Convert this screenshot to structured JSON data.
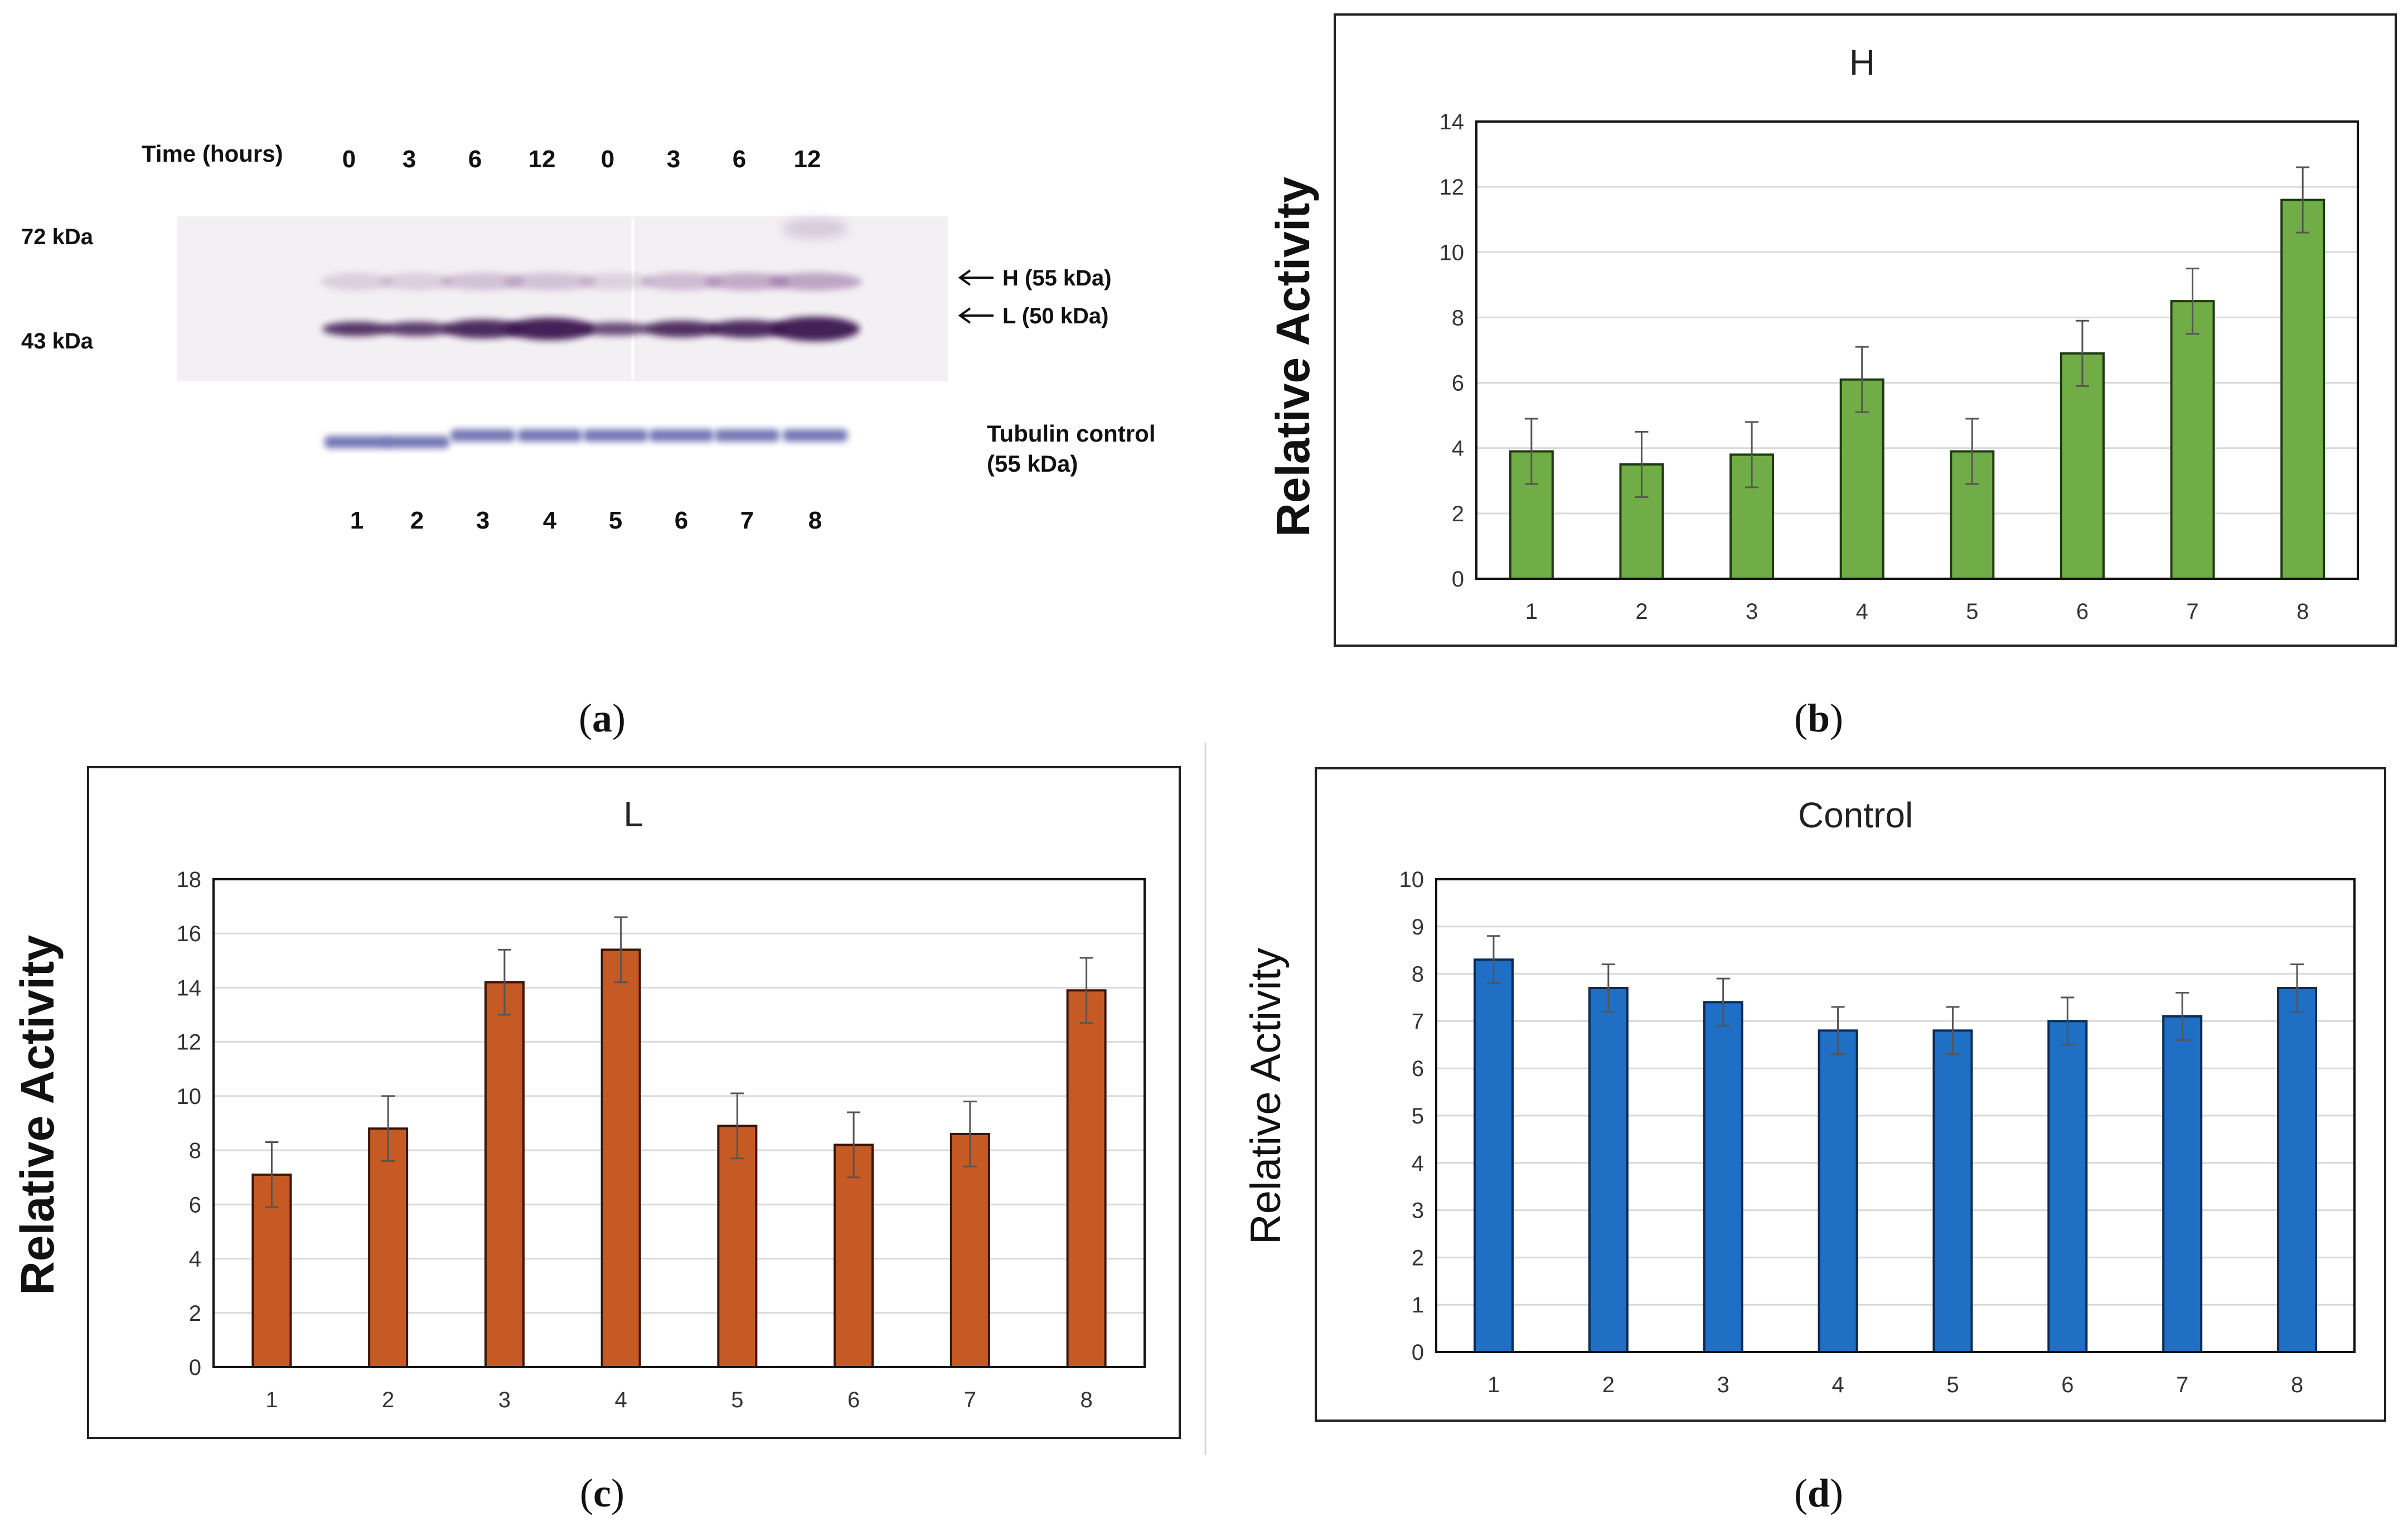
{
  "blot": {
    "time_label": "Time (hours)",
    "times": [
      "0",
      "3",
      "6",
      "12",
      "0",
      "3",
      "6",
      "12"
    ],
    "markers": [
      "72 kDa",
      "43 kDa"
    ],
    "band_labels": [
      "H (55 kDa)",
      "L (50 kDa)"
    ],
    "control_label_line1": "Tubulin control",
    "control_label_line2": "(55 kDa)",
    "lanes": [
      "1",
      "2",
      "3",
      "4",
      "5",
      "6",
      "7",
      "8"
    ]
  },
  "panel_labels": {
    "a": [
      "(",
      "a",
      ")"
    ],
    "b": [
      "(",
      "b",
      ")"
    ],
    "c": [
      "(",
      "c",
      ")"
    ],
    "d": [
      "(",
      "d",
      ")"
    ]
  },
  "colors": {
    "H": "#70ad47",
    "L": "#c55a24",
    "Control": "#1f6fc4"
  },
  "chart_data": [
    {
      "id": "b",
      "type": "bar",
      "title": "H",
      "xlabel": "",
      "ylabel": "Relative Activity",
      "categories": [
        "1",
        "2",
        "3",
        "4",
        "5",
        "6",
        "7",
        "8"
      ],
      "values": [
        3.9,
        3.5,
        3.8,
        6.1,
        3.9,
        6.9,
        8.5,
        11.6
      ],
      "errors": [
        1.0,
        1.0,
        1.0,
        1.0,
        1.0,
        1.0,
        1.0,
        1.0
      ],
      "ylim": [
        0,
        14
      ],
      "yticks": [
        "0",
        "2",
        "4",
        "6",
        "8",
        "10",
        "12",
        "14"
      ],
      "grid": true
    },
    {
      "id": "c",
      "type": "bar",
      "title": "L",
      "xlabel": "",
      "ylabel": "Relative Activity",
      "categories": [
        "1",
        "2",
        "3",
        "4",
        "5",
        "6",
        "7",
        "8"
      ],
      "values": [
        7.1,
        8.8,
        14.2,
        15.4,
        8.9,
        8.2,
        8.6,
        13.9
      ],
      "errors": [
        1.2,
        1.2,
        1.2,
        1.2,
        1.2,
        1.2,
        1.2,
        1.2
      ],
      "ylim": [
        0,
        18
      ],
      "yticks": [
        "0",
        "2",
        "4",
        "6",
        "8",
        "10",
        "12",
        "14",
        "16",
        "18"
      ],
      "grid": true
    },
    {
      "id": "d",
      "type": "bar",
      "title": "Control",
      "xlabel": "",
      "ylabel": "Relative Activity",
      "categories": [
        "1",
        "2",
        "3",
        "4",
        "5",
        "6",
        "7",
        "8"
      ],
      "values": [
        8.3,
        7.7,
        7.4,
        6.8,
        6.8,
        7.0,
        7.1,
        7.7
      ],
      "errors": [
        0.5,
        0.5,
        0.5,
        0.5,
        0.5,
        0.5,
        0.5,
        0.5
      ],
      "ylim": [
        0,
        10
      ],
      "yticks": [
        "0",
        "1",
        "2",
        "3",
        "4",
        "5",
        "6",
        "7",
        "8",
        "9",
        "10"
      ],
      "grid": true
    }
  ]
}
